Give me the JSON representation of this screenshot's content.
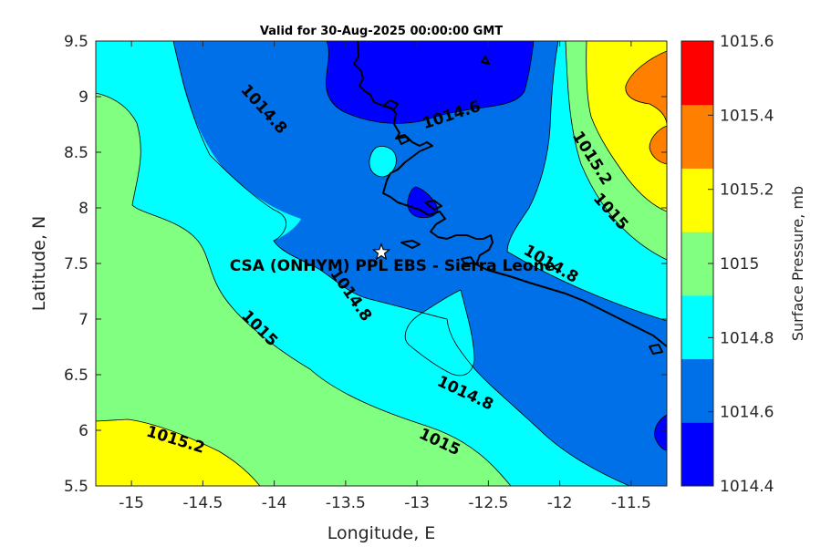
{
  "title": "Valid for 30-Aug-2025 00:00:00 GMT",
  "map": {
    "xlabel": "Longitude, E",
    "ylabel": "Latitude, N",
    "xlim": [
      -15.25,
      -11.25
    ],
    "ylim": [
      5.5,
      9.5
    ],
    "x_ticks": [
      {
        "value": -15,
        "label": "-15"
      },
      {
        "value": -14.5,
        "label": "-14.5"
      },
      {
        "value": -14,
        "label": "-14"
      },
      {
        "value": -13.5,
        "label": "-13.5"
      },
      {
        "value": -13,
        "label": "-13"
      },
      {
        "value": -12.5,
        "label": "-12.5"
      },
      {
        "value": -12,
        "label": "-12"
      },
      {
        "value": -11.5,
        "label": "-11.5"
      }
    ],
    "y_ticks": [
      {
        "value": 5.5,
        "label": "5.5"
      },
      {
        "value": 6,
        "label": "6"
      },
      {
        "value": 6.5,
        "label": "6.5"
      },
      {
        "value": 7,
        "label": "7"
      },
      {
        "value": 7.5,
        "label": "7.5"
      },
      {
        "value": 8,
        "label": "8"
      },
      {
        "value": 8.5,
        "label": "8.5"
      },
      {
        "value": 9,
        "label": "9"
      },
      {
        "value": 9.5,
        "label": "9.5"
      }
    ],
    "contour_labels": [
      {
        "text": "1014.8",
        "lon": -14.07,
        "lat": 8.89,
        "angle": 48
      },
      {
        "text": "1014.6",
        "lon": -12.76,
        "lat": 8.84,
        "angle": -18
      },
      {
        "text": "1015.2",
        "lon": -11.77,
        "lat": 8.45,
        "angle": 58
      },
      {
        "text": "1015",
        "lon": -11.64,
        "lat": 7.97,
        "angle": 48
      },
      {
        "text": "1014.8",
        "lon": -12.06,
        "lat": 7.5,
        "angle": 30
      },
      {
        "text": "1014.8",
        "lon": -13.46,
        "lat": 7.22,
        "angle": 55
      },
      {
        "text": "1015",
        "lon": -14.1,
        "lat": 6.92,
        "angle": 45
      },
      {
        "text": "1014.8",
        "lon": -12.66,
        "lat": 6.34,
        "angle": 25
      },
      {
        "text": "1015",
        "lon": -12.84,
        "lat": 5.9,
        "angle": 25
      },
      {
        "text": "1015.2",
        "lon": -14.69,
        "lat": 5.92,
        "angle": 17
      }
    ],
    "site": {
      "label": "CSA (ONHYM) PPL EBS  - Sierra Leone",
      "lon": -13.25,
      "lat": 7.6
    }
  },
  "colorbar": {
    "label": "Surface Pressure, mb",
    "levels": [
      {
        "value": "1014.4",
        "color": "#0000ff"
      },
      {
        "value": "1014.6",
        "color": "#0070e8"
      },
      {
        "value": "1014.8",
        "color": "#00ffff"
      },
      {
        "value": "1015",
        "color": "#80ff80"
      },
      {
        "value": "1015.2",
        "color": "#ffff00"
      },
      {
        "value": "1015.4",
        "color": "#ff8000"
      },
      {
        "value": "1015.6",
        "color": "#ff0000"
      }
    ],
    "bands": [
      "#0000ff",
      "#0070e8",
      "#00ffff",
      "#80ff80",
      "#ffff00",
      "#ff8000",
      "#ff0000"
    ]
  },
  "field_colors": {
    "p1014_4": "#0000ff",
    "p1014_6": "#0070e8",
    "p1014_8": "#00ffff",
    "p1015_0": "#80ff80",
    "p1015_2": "#ffff00",
    "p1015_4": "#ff8000"
  }
}
